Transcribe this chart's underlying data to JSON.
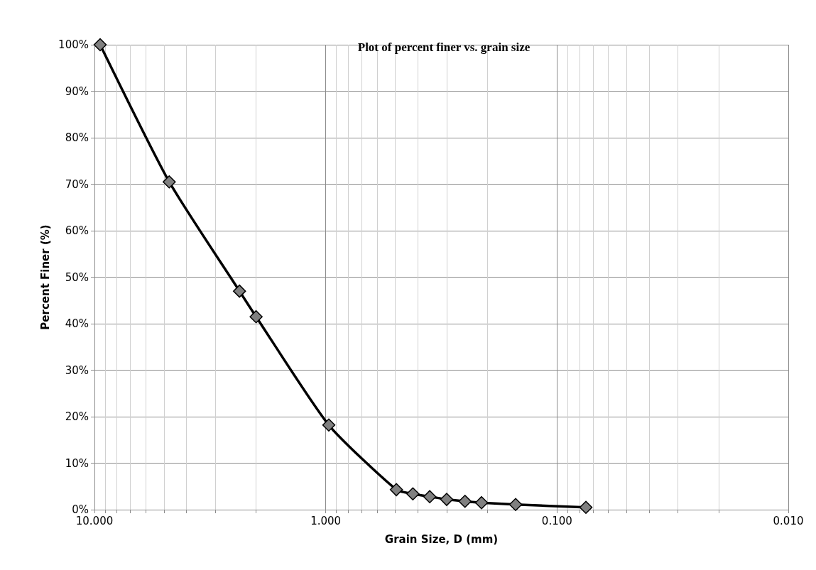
{
  "chart_data": {
    "type": "line",
    "title": "Plot of percent finer vs. grain size",
    "xlabel": "Grain Size, D (mm)",
    "ylabel": "Percent Finer (%)",
    "x": [
      9.45,
      4.75,
      2.36,
      2.0,
      0.97,
      0.495,
      0.42,
      0.355,
      0.3,
      0.25,
      0.212,
      0.151,
      0.075
    ],
    "series": [
      {
        "color": "#000000",
        "values": [
          100,
          70.5,
          47,
          41.5,
          18.2,
          4.3,
          3.4,
          2.8,
          2.2,
          1.8,
          1.5,
          1.1,
          0.5
        ]
      }
    ],
    "log": "x",
    "xlim": [
      10,
      0.01
    ],
    "xticks": [
      {
        "value": 0.01,
        "label": "0.010"
      },
      {
        "value": 0.02,
        "label": null
      },
      {
        "value": 0.03,
        "label": null
      },
      {
        "value": 0.04,
        "label": null
      },
      {
        "value": 0.05,
        "label": null
      },
      {
        "value": 0.06,
        "label": null
      },
      {
        "value": 0.07,
        "label": null
      },
      {
        "value": 0.08,
        "label": null
      },
      {
        "value": 0.09,
        "label": null
      },
      {
        "value": 0.1,
        "label": "0.100"
      },
      {
        "value": 0.2,
        "label": null
      },
      {
        "value": 0.3,
        "label": null
      },
      {
        "value": 0.4,
        "label": null
      },
      {
        "value": 0.5,
        "label": null
      },
      {
        "value": 0.6,
        "label": null
      },
      {
        "value": 0.7,
        "label": null
      },
      {
        "value": 0.8,
        "label": null
      },
      {
        "value": 0.9,
        "label": null
      },
      {
        "value": 1,
        "label": "1.000"
      },
      {
        "value": 2,
        "label": null
      },
      {
        "value": 3,
        "label": null
      },
      {
        "value": 4,
        "label": null
      },
      {
        "value": 5,
        "label": null
      },
      {
        "value": 6,
        "label": null
      },
      {
        "value": 7,
        "label": null
      },
      {
        "value": 8,
        "label": null
      },
      {
        "value": 9,
        "label": null
      },
      {
        "value": 10,
        "label": "10.000"
      }
    ],
    "ylim": [
      0,
      100
    ],
    "yticks": [
      {
        "value": 0,
        "label": "0%"
      },
      {
        "value": 10,
        "label": "10%"
      },
      {
        "value": 20,
        "label": "20%"
      },
      {
        "value": 30,
        "label": "30%"
      },
      {
        "value": 40,
        "label": "40%"
      },
      {
        "value": 50,
        "label": "50%"
      },
      {
        "value": 60,
        "label": "60%"
      },
      {
        "value": 70,
        "label": "70%"
      },
      {
        "value": 80,
        "label": "80%"
      },
      {
        "value": 90,
        "label": "90%"
      },
      {
        "value": 100,
        "label": "100%"
      }
    ],
    "grid": true,
    "marker": "diamond",
    "line_style": "solid"
  }
}
